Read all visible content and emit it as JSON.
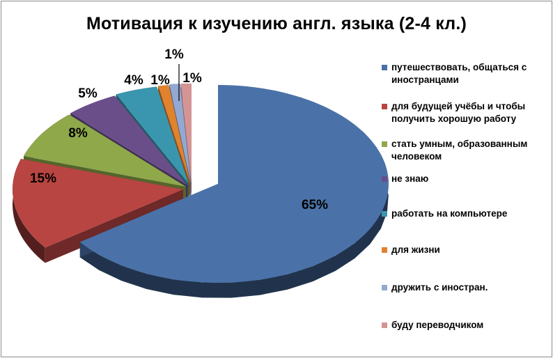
{
  "chart_data": {
    "type": "pie",
    "title": "Мотивация к изучению англ. языка (2-4 кл.)",
    "categories": [
      "путешествовать, общаться с иностранцами",
      "для будущей учёбы и чтобы получить хорошую работу",
      "стать умным, образованным человеком",
      "не знаю",
      "работать на компьютере",
      "для жизни",
      "дружить с иностран.",
      "буду переводчиком"
    ],
    "values": [
      65,
      15,
      8,
      5,
      4,
      1,
      1,
      1
    ],
    "data_labels": [
      "65%",
      "15%",
      "8%",
      "5%",
      "4%",
      "1%",
      "1%",
      "1%"
    ],
    "colors": [
      "#4a72a8",
      "#b84542",
      "#8ea84a",
      "#6a4e8a",
      "#3a96ae",
      "#e0822e",
      "#93a8d2",
      "#d49494"
    ],
    "legend_placement": "right",
    "style": "3d-exploded"
  }
}
